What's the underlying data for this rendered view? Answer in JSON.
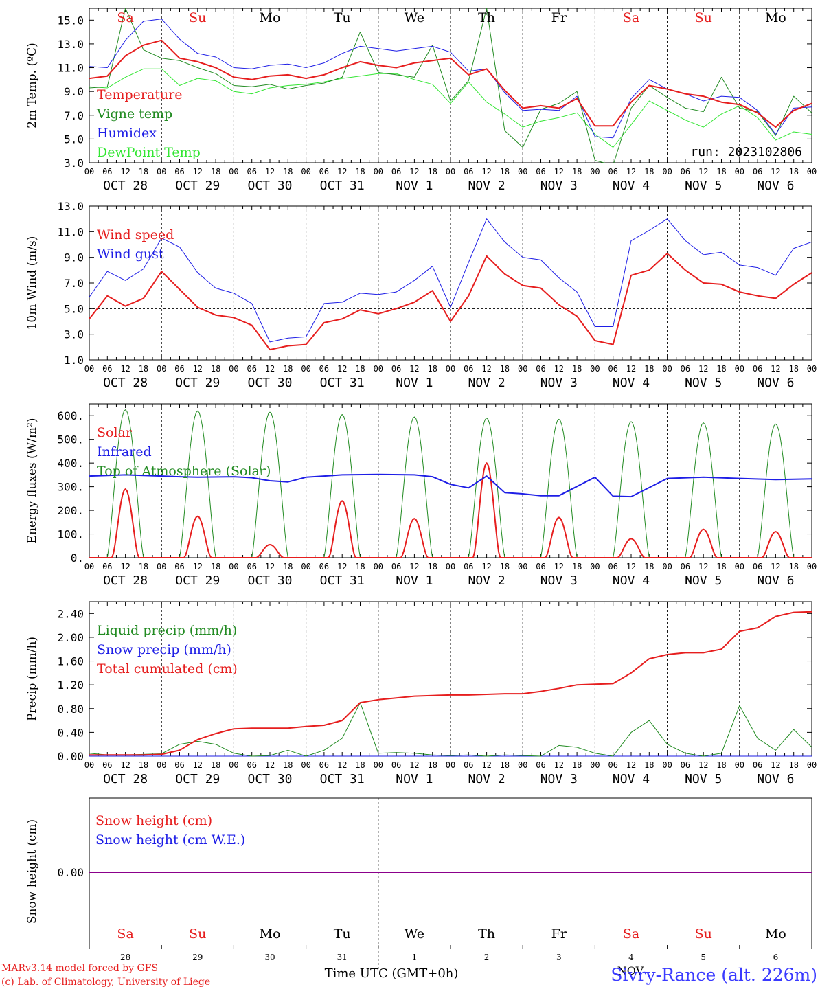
{
  "chart_data": [
    {
      "type": "line",
      "ylabel": "2m Temp. (ºC)",
      "ylim": [
        3.0,
        16.0
      ],
      "yticks": [
        "3.0",
        "5.0",
        "7.0",
        "9.0",
        "11.0",
        "13.0",
        "15.0"
      ],
      "ytick_values": [
        3,
        5,
        7,
        9,
        11,
        13,
        15
      ],
      "legend": [
        "Temperature",
        "Vigne temp",
        "Humidex",
        "DewPoint Temp"
      ],
      "day_labels": [
        "Sa",
        "Su",
        "Mo",
        "Tu",
        "We",
        "Th",
        "Fr",
        "Sa",
        "Su",
        "Mo"
      ],
      "day_label_colors": [
        "#e61e1e",
        "#e61e1e",
        "#000000",
        "#000000",
        "#000000",
        "#000000",
        "#000000",
        "#e61e1e",
        "#e61e1e",
        "#000000"
      ],
      "annotation": "run: 2023102806",
      "dashed_line": null,
      "x_hours": [
        0,
        6,
        12,
        18,
        24,
        30,
        36,
        42,
        48,
        54,
        60,
        66,
        72,
        78,
        84,
        90,
        96,
        102,
        108,
        114,
        120,
        126,
        132,
        138,
        144,
        150,
        156,
        162,
        168,
        174,
        180,
        186,
        192,
        198,
        204,
        210,
        216,
        222,
        228,
        234,
        240
      ],
      "series": [
        {
          "name": "Temperature",
          "color": "#e61e1e",
          "width": 2,
          "values": [
            10.1,
            10.3,
            12.0,
            12.9,
            13.3,
            11.8,
            11.5,
            11.0,
            10.2,
            10.0,
            10.3,
            10.4,
            10.1,
            10.4,
            11.0,
            11.5,
            11.2,
            11.0,
            11.4,
            11.6,
            11.8,
            10.4,
            10.9,
            9.1,
            7.6,
            7.8,
            7.6,
            8.4,
            6.1,
            6.1,
            8.1,
            9.5,
            9.2,
            8.8,
            8.6,
            8.1,
            7.9,
            7.2,
            6.0,
            7.4,
            8.0
          ]
        },
        {
          "name": "Vigne temp",
          "color": "#228b22",
          "width": 1,
          "values": [
            9.3,
            9.4,
            16.0,
            12.5,
            11.8,
            11.6,
            11.0,
            10.5,
            9.5,
            9.4,
            9.6,
            9.2,
            9.5,
            9.7,
            10.2,
            14.0,
            10.6,
            10.4,
            10.2,
            12.9,
            8.2,
            9.9,
            16.0,
            5.7,
            4.3,
            7.5,
            8.0,
            9.0,
            3.2,
            2.8,
            7.6,
            9.5,
            8.5,
            7.6,
            7.3,
            10.2,
            7.6,
            7.3,
            5.3,
            8.6,
            7.2
          ]
        },
        {
          "name": "Humidex",
          "color": "#1e1ee6",
          "width": 1,
          "values": [
            11.1,
            11.0,
            13.3,
            14.9,
            15.1,
            13.4,
            12.2,
            11.9,
            11.0,
            10.9,
            11.2,
            11.3,
            11.0,
            11.4,
            12.2,
            12.8,
            12.6,
            12.4,
            12.6,
            12.8,
            12.3,
            10.7,
            10.9,
            8.9,
            7.4,
            7.5,
            7.4,
            8.6,
            5.2,
            5.1,
            8.4,
            10.0,
            9.2,
            8.8,
            8.2,
            8.6,
            8.5,
            7.4,
            5.4,
            7.6,
            7.7
          ]
        },
        {
          "name": "DewPoint Temp",
          "color": "#33e633",
          "width": 1,
          "values": [
            9.4,
            9.3,
            10.2,
            10.9,
            10.9,
            9.5,
            10.1,
            9.9,
            9.0,
            8.8,
            9.3,
            9.5,
            9.6,
            9.8,
            10.1,
            10.3,
            10.5,
            10.5,
            10.0,
            9.6,
            8.0,
            9.8,
            8.1,
            7.1,
            6.0,
            6.5,
            6.8,
            7.2,
            5.4,
            4.3,
            6.2,
            8.2,
            7.4,
            6.6,
            6.0,
            7.1,
            7.8,
            6.8,
            4.9,
            5.6,
            5.4
          ]
        }
      ]
    },
    {
      "type": "line",
      "ylabel": "10m Wind (m/s)",
      "ylim": [
        1.0,
        13.0
      ],
      "yticks": [
        "1.0",
        "3.0",
        "5.0",
        "7.0",
        "9.0",
        "11.0",
        "13.0"
      ],
      "ytick_values": [
        1,
        3,
        5,
        7,
        9,
        11,
        13
      ],
      "legend": [
        "Wind speed",
        "Wind gust"
      ],
      "dashed_line": 5.0,
      "x_hours": [
        0,
        6,
        12,
        18,
        24,
        30,
        36,
        42,
        48,
        54,
        60,
        66,
        72,
        78,
        84,
        90,
        96,
        102,
        108,
        114,
        120,
        126,
        132,
        138,
        144,
        150,
        156,
        162,
        168,
        174,
        180,
        186,
        192,
        198,
        204,
        210,
        216,
        222,
        228,
        234,
        240
      ],
      "series": [
        {
          "name": "Wind speed",
          "color": "#e61e1e",
          "width": 2,
          "values": [
            4.2,
            6.0,
            5.2,
            5.8,
            7.9,
            6.5,
            5.1,
            4.5,
            4.3,
            3.7,
            1.8,
            2.1,
            2.2,
            3.9,
            4.2,
            4.9,
            4.6,
            5.0,
            5.5,
            6.4,
            4.0,
            6.0,
            9.1,
            7.7,
            6.8,
            6.6,
            5.3,
            4.4,
            2.5,
            2.2,
            7.6,
            8.0,
            9.3,
            8.0,
            7.0,
            6.9,
            6.3,
            6.0,
            5.8,
            6.9,
            7.8
          ]
        },
        {
          "name": "Wind gust",
          "color": "#1e1ee6",
          "width": 1,
          "values": [
            5.9,
            7.9,
            7.2,
            8.1,
            10.5,
            9.8,
            7.8,
            6.6,
            6.2,
            5.4,
            2.4,
            2.7,
            2.8,
            5.4,
            5.5,
            6.2,
            6.1,
            6.3,
            7.2,
            8.3,
            5.1,
            8.6,
            12.0,
            10.2,
            9.0,
            8.8,
            7.4,
            6.3,
            3.6,
            3.6,
            10.3,
            11.1,
            12.0,
            10.3,
            9.2,
            9.4,
            8.4,
            8.2,
            7.6,
            9.7,
            10.2
          ]
        }
      ]
    },
    {
      "type": "line",
      "ylabel": "Energy fluxes (W/m²)",
      "ylim": [
        0,
        650
      ],
      "yticks": [
        "0.",
        "100.",
        "200.",
        "300.",
        "400.",
        "500.",
        "600."
      ],
      "ytick_values": [
        0,
        100,
        200,
        300,
        400,
        500,
        600
      ],
      "legend": [
        "Solar",
        "Infrared",
        "Top of Atmosphere (Solar)"
      ],
      "dashed_line": null,
      "toa_peaks": [
        625,
        620,
        615,
        605,
        595,
        590,
        585,
        575,
        570,
        565
      ],
      "solar_peaks": [
        290,
        175,
        55,
        240,
        165,
        400,
        170,
        80,
        120,
        110
      ],
      "infrared_hours": [
        0,
        12,
        24,
        30,
        36,
        48,
        54,
        60,
        66,
        72,
        78,
        84,
        96,
        108,
        114,
        120,
        126,
        132,
        138,
        144,
        150,
        156,
        168,
        174,
        180,
        192,
        204,
        216,
        228,
        240
      ],
      "infrared_values": [
        345,
        350,
        345,
        342,
        340,
        342,
        338,
        325,
        320,
        340,
        345,
        350,
        352,
        350,
        342,
        310,
        295,
        345,
        275,
        270,
        262,
        262,
        340,
        260,
        258,
        335,
        340,
        335,
        330,
        333
      ]
    },
    {
      "type": "line",
      "ylabel": "Precip (mm/h)",
      "ylim": [
        0.0,
        2.6
      ],
      "yticks": [
        "0.00",
        "0.40",
        "0.80",
        "1.20",
        "1.60",
        "2.00",
        "2.40"
      ],
      "ytick_values": [
        0,
        0.4,
        0.8,
        1.2,
        1.6,
        2.0,
        2.4
      ],
      "legend": [
        "Liquid precip (mm/h)",
        "Snow precip (mm/h)",
        "Total cumulated (cm)"
      ],
      "dashed_line": null,
      "x_hours": [
        0,
        6,
        12,
        18,
        24,
        30,
        36,
        42,
        48,
        54,
        60,
        66,
        72,
        78,
        84,
        90,
        96,
        102,
        108,
        114,
        120,
        126,
        132,
        138,
        144,
        150,
        156,
        162,
        168,
        174,
        180,
        186,
        192,
        198,
        204,
        210,
        216,
        222,
        228,
        234,
        240
      ],
      "series": [
        {
          "name": "Total cumulated (cm)",
          "color": "#e61e1e",
          "width": 2,
          "values": [
            0.02,
            0.02,
            0.02,
            0.02,
            0.03,
            0.1,
            0.28,
            0.38,
            0.46,
            0.47,
            0.47,
            0.47,
            0.5,
            0.52,
            0.6,
            0.9,
            0.95,
            0.98,
            1.01,
            1.02,
            1.03,
            1.03,
            1.04,
            1.05,
            1.05,
            1.09,
            1.14,
            1.2,
            1.21,
            1.22,
            1.4,
            1.64,
            1.71,
            1.74,
            1.74,
            1.8,
            2.1,
            2.16,
            2.35,
            2.42,
            2.43
          ]
        },
        {
          "name": "Liquid precip (mm/h)",
          "color": "#228b22",
          "width": 1,
          "values": [
            0.05,
            0.02,
            0.02,
            0.03,
            0.04,
            0.2,
            0.25,
            0.2,
            0.05,
            0.0,
            0.01,
            0.1,
            0.0,
            0.1,
            0.3,
            0.9,
            0.05,
            0.06,
            0.05,
            0.02,
            0.01,
            0.02,
            0.0,
            0.02,
            0.01,
            0.0,
            0.18,
            0.15,
            0.05,
            0.0,
            0.4,
            0.6,
            0.2,
            0.05,
            0.0,
            0.05,
            0.85,
            0.3,
            0.1,
            0.45,
            0.15
          ]
        },
        {
          "name": "Snow precip (mm/h)",
          "color": "#1e1ee6",
          "width": 1,
          "values": [
            0,
            0,
            0,
            0,
            0,
            0,
            0,
            0,
            0,
            0,
            0,
            0,
            0,
            0,
            0,
            0,
            0,
            0,
            0,
            0,
            0,
            0,
            0,
            0,
            0,
            0,
            0,
            0,
            0,
            0,
            0,
            0,
            0,
            0,
            0,
            0,
            0,
            0,
            0,
            0,
            0
          ]
        }
      ]
    },
    {
      "type": "line",
      "ylabel": "Snow height (cm)",
      "yticks": [
        "0.00"
      ],
      "legend": [
        "Snow height (cm)",
        "Snow height (cm W.E.)"
      ],
      "day_labels": [
        "Sa",
        "Su",
        "Mo",
        "Tu",
        "We",
        "Th",
        "Fr",
        "Sa",
        "Su",
        "Mo"
      ],
      "date_numbers": [
        "28",
        "29",
        "30",
        "31",
        "1",
        "2",
        "3",
        "4",
        "5",
        "6"
      ],
      "xlabel": "Time UTC (GMT+0h)",
      "series": [
        {
          "name": "Snow height (cm)",
          "color": "#e61e1e",
          "values": [
            0,
            0
          ]
        },
        {
          "name": "Snow height (cm W.E.)",
          "color": "#1e1ee6",
          "values": [
            0,
            0
          ]
        }
      ]
    }
  ],
  "x_axis": {
    "hour_labels": [
      "00",
      "06",
      "12",
      "18"
    ],
    "end_label": "00",
    "date_labels": [
      "OCT 28",
      "OCT 29",
      "OCT 30",
      "OCT 31",
      "NOV  1",
      "NOV  2",
      "NOV  3",
      "NOV  4",
      "NOV  5",
      "NOV  6"
    ]
  },
  "footer": {
    "credit_line1": "MARv3.14 model forced by GFS",
    "credit_line2": "(c) Lab. of Climatology, University of Liege",
    "month_label": "NOV",
    "station": "Sivry-Rance (alt. 226m)"
  },
  "colors": {
    "red": "#e61e1e",
    "green": "#228b22",
    "blue": "#1e1ee6",
    "lightgreen": "#33e633",
    "purple": "#8b008b",
    "station_blue": "#3a3aff"
  }
}
